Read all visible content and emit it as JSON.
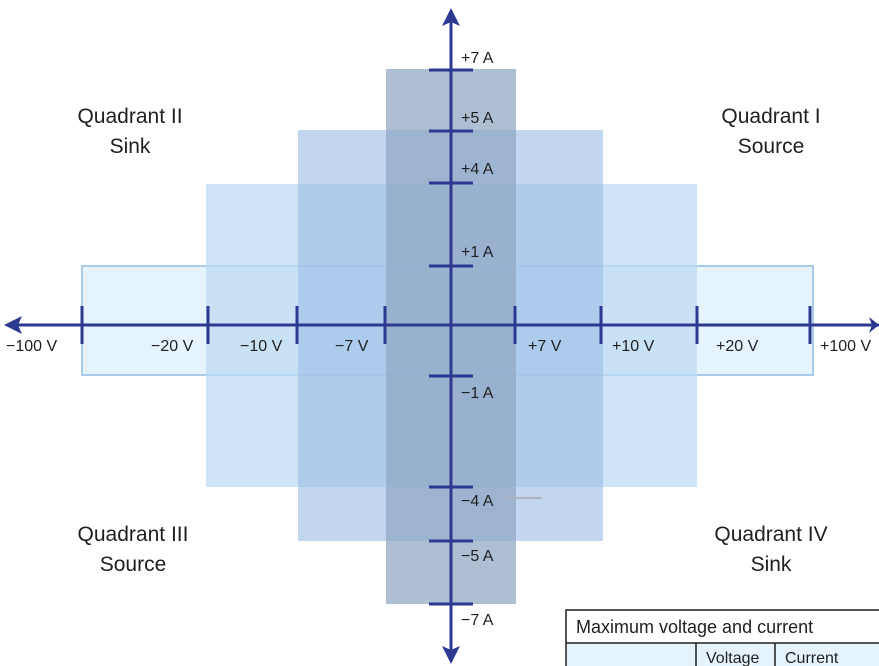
{
  "quadrants": {
    "q1": {
      "line1": "Quadrant I",
      "line2": "Source"
    },
    "q2": {
      "line1": "Quadrant II",
      "line2": "Sink"
    },
    "q3": {
      "line1": "Quadrant III",
      "line2": "Source"
    },
    "q4": {
      "line1": "Quadrant IV",
      "line2": "Sink"
    }
  },
  "voltage_ticks": [
    "−100 V",
    "−20 V",
    "−10 V",
    "−7 V",
    "+7 V",
    "+10 V",
    "+20 V",
    "+100 V"
  ],
  "current_ticks": [
    "+7 A",
    "+5 A",
    "+4 A",
    "+1 A",
    "−1 A",
    "−4 A",
    "−5 A",
    "−7 A"
  ],
  "regions": [
    {
      "voltage": "±7 V",
      "current": "±7 A",
      "color": "#8fa6c4"
    },
    {
      "voltage": "±10 V",
      "current": "±5 A",
      "color": "#9dbde6"
    },
    {
      "voltage": "±20 V",
      "current": "±4 A",
      "color": "#bcdaf2"
    },
    {
      "voltage": "±100 V",
      "current": "±1 A",
      "color": "#e4f3fc"
    }
  ],
  "axis_color": "#2b3990",
  "table": {
    "title": "Maximum voltage and current",
    "col_voltage": "Voltage",
    "col_current": "Current"
  }
}
